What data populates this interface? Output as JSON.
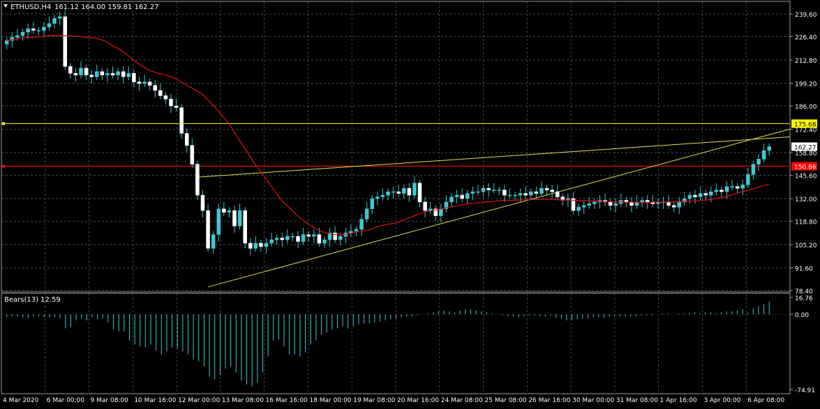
{
  "main_header": {
    "symbol_label": "ETHUSD,H4",
    "ohlc": "161.12 164.00 159.81 162.27"
  },
  "indicator_header": {
    "label": "Bears(13) 12.59"
  },
  "colors": {
    "background": "#000000",
    "grid": "#5a6470",
    "axis_text": "#ffffff",
    "candle": "#40c8d0",
    "ma_line": "#e01010",
    "trendline": "#e6e24a",
    "level_yellow": "#ffff00",
    "level_red": "#ff0000",
    "bears_hist": "#40c8d0"
  },
  "chart_data": [
    {
      "type": "candlestick",
      "ylim": [
        78.4,
        239.6
      ],
      "y_ticks": [
        "239.60",
        "226.40",
        "212.80",
        "199.20",
        "186.00",
        "172.40",
        "158.80",
        "145.60",
        "132.00",
        "118.80",
        "105.20",
        "91.60",
        "78.40"
      ],
      "x_tick_labels": [
        "4 Mar 2020",
        "6 Mar 00:00",
        "9 Mar 08:00",
        "10 Mar 16:00",
        "12 Mar 00:00",
        "13 Mar 08:00",
        "16 Mar 16:00",
        "18 Mar 00:00",
        "19 Mar 08:00",
        "20 Mar 16:00",
        "24 Mar 08:00",
        "25 Mar 08:00",
        "26 Mar 16:00",
        "30 Mar 00:00",
        "31 Mar 08:00",
        "1 Apr 16:00",
        "3 Apr 00:00",
        "6 Apr 08:00"
      ],
      "price_tags": [
        {
          "label": "175.68",
          "value": 175.68,
          "color": "yellow"
        },
        {
          "label": "162.27",
          "value": 162.27,
          "color": "white"
        },
        {
          "label": "150.86",
          "value": 150.86,
          "color": "red"
        }
      ],
      "horizontal_levels": [
        {
          "value": 175.68,
          "color": "yellow"
        },
        {
          "value": 150.86,
          "color": "red"
        }
      ],
      "closes": [
        224,
        226,
        227,
        229,
        231,
        230,
        230,
        232,
        234,
        237,
        238,
        209,
        205,
        204,
        208,
        204,
        203,
        206,
        204,
        205,
        204,
        206,
        203,
        205,
        200,
        199,
        200,
        198,
        195,
        192,
        190,
        186,
        185,
        170,
        163,
        152,
        134,
        125,
        103,
        111,
        126,
        124,
        125,
        116,
        125,
        106,
        103,
        106,
        104,
        106,
        108,
        109,
        108,
        110,
        110,
        107,
        111,
        110,
        111,
        106,
        108,
        112,
        108,
        110,
        112,
        113,
        114,
        120,
        126,
        132,
        133,
        134,
        136,
        136,
        135,
        138,
        134,
        141,
        130,
        125,
        126,
        122,
        126,
        130,
        133,
        134,
        132,
        135,
        136,
        136,
        138,
        137,
        137,
        137,
        134,
        134,
        134,
        135,
        134,
        136,
        135,
        138,
        137,
        136,
        133,
        131,
        132,
        125,
        127,
        128,
        129,
        130,
        131,
        130,
        128,
        129,
        131,
        130,
        128,
        130,
        131,
        130,
        129,
        130,
        130,
        128,
        127,
        130,
        132,
        134,
        133,
        135,
        134,
        136,
        137,
        136,
        139,
        139,
        138,
        140,
        146,
        152,
        155,
        160,
        162.27
      ],
      "ma_values": [
        224,
        225,
        226,
        226,
        226.5,
        227,
        227,
        226.8,
        226.5,
        226,
        225.5,
        224,
        221,
        218,
        214,
        210,
        207,
        205,
        204,
        202,
        199,
        196,
        193,
        188,
        182,
        176,
        168,
        160,
        152,
        145,
        138,
        131,
        126,
        121,
        117,
        114,
        112,
        111,
        111,
        112,
        113,
        114,
        116,
        117,
        118,
        120,
        122,
        124,
        125,
        126,
        127,
        128,
        129,
        129.5,
        130,
        130.5,
        131,
        131,
        131.2,
        131.4,
        131.5,
        131.5,
        131.3,
        131.2,
        131,
        130.8,
        130.6,
        130.4,
        130.2,
        130,
        129.9,
        129.8,
        129.8,
        129.9,
        130,
        130,
        130.2,
        130.5,
        130.8,
        131.2,
        132,
        133,
        134.5,
        136,
        137.5,
        139,
        140.5
      ],
      "trendlines": [
        {
          "from_price": 80.5,
          "to_price": 172.5
        },
        {
          "from_price": 144.5,
          "to_price": 168.0
        }
      ]
    },
    {
      "type": "bar",
      "name": "Bears(13)",
      "last_value": 12.59,
      "ylim": [
        -74.91,
        16.76
      ],
      "y_ticks": [
        "16.76",
        "0.00",
        "-74.91"
      ],
      "values": [
        -3,
        -2,
        -2,
        -3,
        -4,
        -2,
        -2,
        -3,
        -3,
        -3,
        -4,
        -14,
        -13,
        -6,
        -4,
        -6,
        -3,
        -5,
        -4,
        -8,
        -15,
        -17,
        -17,
        -26,
        -30,
        -32,
        -33,
        -30,
        -36,
        -40,
        -37,
        -33,
        -34,
        -37,
        -40,
        -45,
        -47,
        -52,
        -62,
        -65,
        -60,
        -54,
        -52,
        -58,
        -66,
        -70,
        -72,
        -68,
        -58,
        -42,
        -26,
        -25,
        -32,
        -40,
        -40,
        -42,
        -38,
        -30,
        -26,
        -20,
        -18,
        -15,
        -14,
        -12,
        -14,
        -12,
        -10,
        -9,
        -9,
        -8,
        -7,
        -6,
        -5,
        -4,
        -3,
        -2,
        -2,
        -1,
        0,
        1,
        2,
        3,
        4,
        3,
        2,
        4,
        5,
        5,
        4,
        3,
        2,
        1,
        0,
        -1,
        -2,
        -2,
        -3,
        -2,
        -1,
        -1,
        -2,
        -2,
        -1,
        -3,
        -4,
        -6,
        -6,
        -5,
        -4,
        -4,
        -3,
        -3,
        -3,
        -2,
        -2,
        -2,
        -2,
        -2,
        -2,
        -1,
        -1,
        -1,
        0,
        1,
        1,
        0,
        1,
        1,
        1,
        2,
        1,
        2,
        2,
        1,
        2,
        3,
        3,
        4,
        5,
        2,
        6,
        8,
        10,
        12.59
      ]
    }
  ]
}
